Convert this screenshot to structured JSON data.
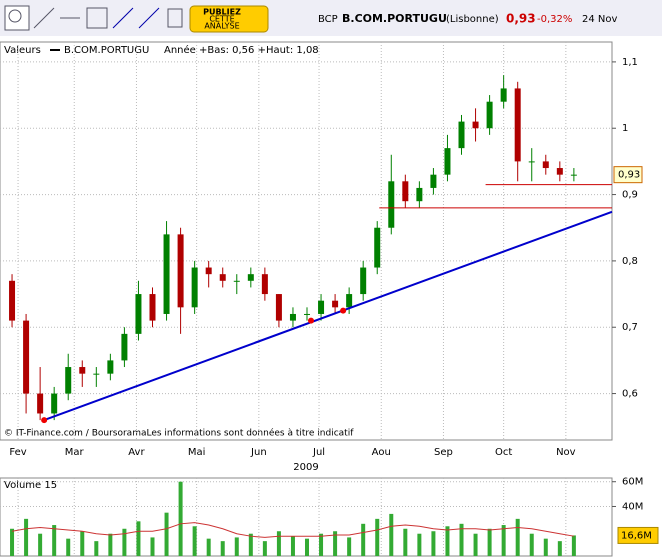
{
  "toolbar": {
    "button": [
      "PUBLIEZ",
      "CETTE",
      "ANALYSE"
    ]
  },
  "header": {
    "ticker": "BCP",
    "name": "B.COM.PORTUGU",
    "market": "(Lisbonne)",
    "price": "0,93",
    "change": "-0,32%",
    "date": "24 Nov"
  },
  "chart_data": {
    "type": "candlestick",
    "legend_label": "Valeurs",
    "series_name": "B.COM.PORTUGU",
    "range_note": "Année +Bas: 0,56 +Haut: 1,08",
    "source": "© IT-Finance.com / BoursoramaLes informations sont données à titre indicatif",
    "year": "2009",
    "x": [
      29,
      36,
      43,
      50,
      57,
      64,
      71,
      78,
      85,
      92,
      99,
      106,
      113,
      120,
      127,
      134,
      141,
      148,
      155,
      162,
      169,
      176,
      183,
      190,
      197,
      204,
      211,
      218,
      225,
      232,
      239,
      246,
      253,
      260,
      267,
      274,
      281,
      288,
      295,
      302,
      309
    ],
    "open": [
      0.77,
      0.71,
      0.6,
      0.57,
      0.6,
      0.64,
      0.63,
      0.63,
      0.65,
      0.69,
      0.75,
      0.72,
      0.84,
      0.73,
      0.79,
      0.78,
      0.77,
      0.77,
      0.78,
      0.75,
      0.71,
      0.72,
      0.72,
      0.74,
      0.73,
      0.75,
      0.79,
      0.85,
      0.92,
      0.89,
      0.91,
      0.93,
      0.97,
      1.01,
      1.0,
      1.04,
      1.06,
      0.95,
      0.95,
      0.94,
      0.93
    ],
    "high": [
      0.78,
      0.72,
      0.64,
      0.61,
      0.66,
      0.65,
      0.64,
      0.66,
      0.7,
      0.77,
      0.76,
      0.86,
      0.85,
      0.8,
      0.8,
      0.79,
      0.78,
      0.79,
      0.79,
      0.75,
      0.73,
      0.73,
      0.75,
      0.75,
      0.76,
      0.8,
      0.86,
      0.96,
      0.93,
      0.92,
      0.94,
      0.99,
      1.02,
      1.03,
      1.05,
      1.08,
      1.07,
      0.97,
      0.96,
      0.95,
      0.94
    ],
    "low": [
      0.7,
      0.57,
      0.56,
      0.56,
      0.59,
      0.61,
      0.61,
      0.62,
      0.64,
      0.68,
      0.7,
      0.71,
      0.69,
      0.72,
      0.76,
      0.76,
      0.75,
      0.76,
      0.74,
      0.7,
      0.7,
      0.71,
      0.71,
      0.72,
      0.72,
      0.74,
      0.78,
      0.84,
      0.88,
      0.88,
      0.9,
      0.92,
      0.96,
      0.98,
      0.99,
      1.03,
      0.92,
      0.92,
      0.93,
      0.92,
      0.92
    ],
    "close": [
      0.71,
      0.6,
      0.57,
      0.6,
      0.64,
      0.63,
      0.63,
      0.65,
      0.69,
      0.75,
      0.71,
      0.84,
      0.73,
      0.79,
      0.78,
      0.77,
      0.77,
      0.78,
      0.75,
      0.71,
      0.72,
      0.72,
      0.74,
      0.73,
      0.75,
      0.79,
      0.85,
      0.92,
      0.89,
      0.91,
      0.93,
      0.97,
      1.01,
      1.0,
      1.04,
      1.06,
      0.95,
      0.95,
      0.94,
      0.93,
      0.93
    ],
    "up_color": "#008000",
    "down_color": "#b00000",
    "xlim": [
      23,
      328
    ],
    "xticks": [
      {
        "value": 32,
        "label": "Fev"
      },
      {
        "value": 60,
        "label": "Mar"
      },
      {
        "value": 91,
        "label": "Avr"
      },
      {
        "value": 121,
        "label": "Mai"
      },
      {
        "value": 152,
        "label": "Jun"
      },
      {
        "value": 182,
        "label": "Jul"
      },
      {
        "value": 213,
        "label": "Aou"
      },
      {
        "value": 244,
        "label": "Sep"
      },
      {
        "value": 274,
        "label": "Oct"
      },
      {
        "value": 305,
        "label": "Nov"
      }
    ],
    "ylim": [
      0.53,
      1.13
    ],
    "yticks": [
      {
        "value": 0.6,
        "label": "0,6"
      },
      {
        "value": 0.7,
        "label": "0,7"
      },
      {
        "value": 0.8,
        "label": "0,8"
      },
      {
        "value": 0.9,
        "label": "0,9"
      },
      1,
      {
        "value": 1.1,
        "label": "1,1"
      }
    ],
    "grid": true,
    "last_price": {
      "value": 0.93,
      "label": "0,93"
    },
    "trendline": {
      "color": "#0000cc",
      "x": [
        45,
        328
      ],
      "y": [
        0.56,
        0.874
      ]
    },
    "touch_points": {
      "color": "#ee0000",
      "x": [
        45,
        178,
        194
      ],
      "y": [
        0.56,
        0.71,
        0.725
      ]
    },
    "levels": [
      {
        "value": 0.88,
        "from": 212,
        "color": "#cc0000"
      },
      {
        "value": 0.915,
        "from": 265,
        "color": "#cc0000"
      }
    ],
    "volume": {
      "title": "Volume 15",
      "values": [
        22,
        30,
        18,
        25,
        14,
        20,
        12,
        18,
        22,
        28,
        15,
        35,
        60,
        24,
        14,
        12,
        15,
        18,
        12,
        20,
        16,
        14,
        18,
        20,
        15,
        26,
        30,
        34,
        22,
        18,
        20,
        24,
        26,
        18,
        22,
        25,
        30,
        18,
        14,
        12,
        16.6
      ],
      "color": "#33aa33",
      "average": [
        20,
        22,
        23,
        22,
        21,
        20,
        18,
        17,
        18,
        20,
        20,
        22,
        26,
        27,
        25,
        22,
        18,
        16,
        15,
        16,
        16,
        16,
        16,
        17,
        17,
        19,
        21,
        24,
        25,
        24,
        22,
        21,
        22,
        22,
        21,
        22,
        23,
        22,
        20,
        18,
        16
      ],
      "average_color": "#cc3333",
      "ylim": [
        0,
        63
      ],
      "yticks": [
        {
          "value": 40,
          "label": "40M"
        },
        {
          "value": 60,
          "label": "60M"
        }
      ],
      "last": {
        "value": 16.6,
        "label": "16,6M"
      }
    }
  }
}
